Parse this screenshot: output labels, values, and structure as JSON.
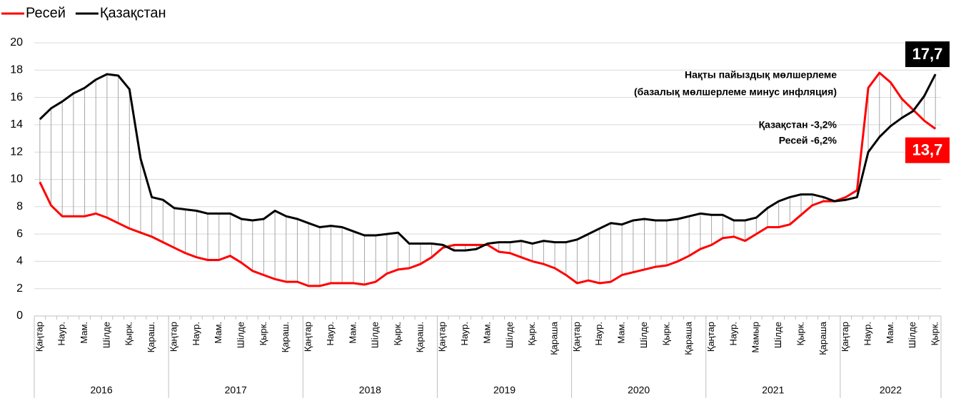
{
  "chart_data": {
    "type": "line",
    "categories": [
      "Қаңтар",
      null,
      "Наур.",
      null,
      "Мам.",
      null,
      "Шілде",
      null,
      "Қырк.",
      null,
      "Қараш.",
      null,
      "Қаңтар",
      null,
      "Наур.",
      null,
      "Мам.",
      null,
      "Шілде",
      null,
      "Қырк.",
      null,
      "Қараш.",
      null,
      "Қаңтар",
      null,
      "Наур.",
      null,
      "Мам.",
      null,
      "Шілде",
      null,
      "Қырк.",
      null,
      "Қараш.",
      null,
      "Қаңтар",
      null,
      "Наур.",
      null,
      "Мам.",
      null,
      "Шілде",
      null,
      "Қырк.",
      null,
      "Қараша",
      null,
      "Қаңтар",
      null,
      "Наур.",
      null,
      "Мам.",
      null,
      "Шілде",
      null,
      "Қырк.",
      null,
      "Қараша",
      null,
      "Қаңтар",
      null,
      "Наур.",
      null,
      "Мамыр",
      null,
      "Шілде",
      null,
      "Қырк.",
      null,
      "Қараша",
      null,
      "Қаңтар",
      null,
      "Наур.",
      null,
      "Мам.",
      null,
      "Шілде",
      null,
      "Қырк."
    ],
    "years": [
      "2016",
      "2017",
      "2018",
      "2019",
      "2020",
      "2021",
      "2022"
    ],
    "series": [
      {
        "name": "Ресей",
        "color": "#ff0000",
        "values": [
          9.8,
          8.1,
          7.3,
          7.3,
          7.3,
          7.5,
          7.2,
          6.8,
          6.4,
          6.1,
          5.8,
          5.4,
          5.0,
          4.6,
          4.3,
          4.1,
          4.1,
          4.4,
          3.9,
          3.3,
          3.0,
          2.7,
          2.5,
          2.5,
          2.2,
          2.2,
          2.4,
          2.4,
          2.4,
          2.3,
          2.5,
          3.1,
          3.4,
          3.5,
          3.8,
          4.3,
          5.0,
          5.2,
          5.2,
          5.2,
          5.2,
          4.7,
          4.6,
          4.3,
          4.0,
          3.8,
          3.5,
          3.0,
          2.4,
          2.6,
          2.4,
          2.5,
          3.0,
          3.2,
          3.4,
          3.6,
          3.7,
          4.0,
          4.4,
          4.9,
          5.2,
          5.7,
          5.8,
          5.5,
          6.0,
          6.5,
          6.5,
          6.7,
          7.4,
          8.1,
          8.4,
          8.4,
          8.7,
          9.2,
          16.7,
          17.8,
          17.1,
          15.9,
          15.1,
          14.3,
          13.7
        ],
        "value_labels": [
          null,
          null,
          null,
          null,
          null,
          null,
          null,
          null,
          null,
          null,
          null,
          null,
          null,
          null,
          null,
          null,
          null,
          null,
          null,
          null,
          null,
          null,
          null,
          null,
          null,
          null,
          null,
          null,
          null,
          null,
          null,
          null,
          null,
          null,
          null,
          null,
          null,
          null,
          null,
          null,
          null,
          null,
          null,
          null,
          null,
          null,
          null,
          null,
          null,
          null,
          null,
          null,
          null,
          null,
          null,
          null,
          null,
          null,
          null,
          null,
          null,
          null,
          null,
          null,
          null,
          null,
          null,
          null,
          null,
          null,
          null,
          null,
          null,
          null,
          null,
          null,
          null,
          null,
          null,
          null,
          "13,7"
        ]
      },
      {
        "name": "Қазақстан",
        "color": "#000000",
        "values": [
          14.4,
          15.2,
          15.7,
          16.3,
          16.7,
          17.3,
          17.7,
          17.6,
          16.6,
          11.5,
          8.7,
          8.5,
          7.9,
          7.8,
          7.7,
          7.5,
          7.5,
          7.5,
          7.1,
          7.0,
          7.1,
          7.7,
          7.3,
          7.1,
          6.8,
          6.5,
          6.6,
          6.5,
          6.2,
          5.9,
          5.9,
          6.0,
          6.1,
          5.3,
          5.3,
          5.3,
          5.2,
          4.8,
          4.8,
          4.9,
          5.3,
          5.4,
          5.4,
          5.5,
          5.3,
          5.5,
          5.4,
          5.4,
          5.6,
          6.0,
          6.4,
          6.8,
          6.7,
          7.0,
          7.1,
          7.0,
          7.0,
          7.1,
          7.3,
          7.5,
          7.4,
          7.4,
          7.0,
          7.0,
          7.2,
          7.9,
          8.4,
          8.7,
          8.9,
          8.9,
          8.7,
          8.4,
          8.5,
          8.7,
          12.0,
          13.1,
          13.9,
          14.5,
          15.0,
          16.1,
          17.7
        ],
        "value_labels": [
          null,
          null,
          null,
          null,
          null,
          null,
          null,
          null,
          null,
          null,
          null,
          null,
          null,
          null,
          null,
          null,
          null,
          null,
          null,
          null,
          null,
          null,
          null,
          null,
          null,
          null,
          null,
          null,
          null,
          null,
          null,
          null,
          null,
          null,
          null,
          null,
          null,
          null,
          null,
          null,
          null,
          null,
          null,
          null,
          null,
          null,
          null,
          null,
          null,
          null,
          null,
          null,
          null,
          null,
          null,
          null,
          null,
          null,
          null,
          null,
          null,
          null,
          null,
          null,
          null,
          null,
          null,
          null,
          null,
          null,
          null,
          null,
          null,
          null,
          null,
          null,
          null,
          null,
          null,
          null,
          "17,7"
        ]
      }
    ],
    "annotations": [
      "Нақты пайыздық мөлшерлеме",
      "(базалық мөлшерлеме минус инфляция)",
      "Қазақстан -3,2%",
      "Ресей -6,2%"
    ],
    "ylim": [
      0,
      20
    ],
    "yticks": [
      0,
      2,
      4,
      6,
      8,
      10,
      12,
      14,
      16,
      18,
      20
    ],
    "grid": true,
    "legend": "top-left"
  }
}
